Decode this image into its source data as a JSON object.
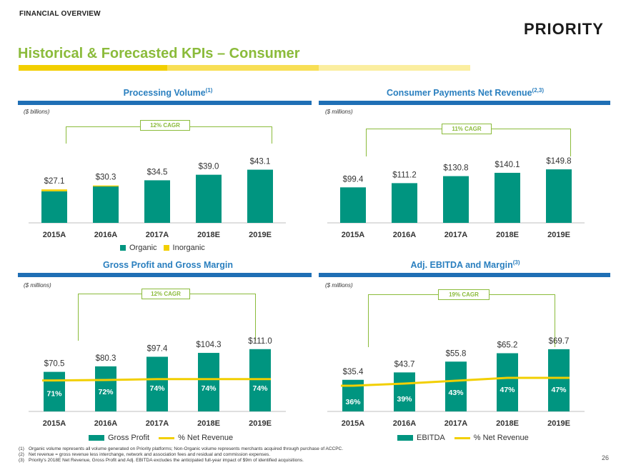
{
  "header": {
    "section_label": "FINANCIAL OVERVIEW",
    "logo_text": "PRIORITY",
    "page_title": "Historical & Forecasted KPIs – Consumer",
    "page_number": "26"
  },
  "colors": {
    "teal": "#009580",
    "yellow": "#f2cf00",
    "green": "#8bbb3b",
    "blue": "#1f6fb5",
    "title_blue": "#2a7fbf"
  },
  "chart_data": [
    {
      "id": "processing_volume",
      "type": "bar",
      "title": "Processing Volume",
      "title_sup": "(1)",
      "unit_label": "($ billions)",
      "cagr_label": "12% CAGR",
      "categories": [
        "2015A",
        "2016A",
        "2017A",
        "2018E",
        "2019E"
      ],
      "series": [
        {
          "name": "Organic",
          "values": [
            25.6,
            29.5,
            34.5,
            39.0,
            43.1
          ]
        },
        {
          "name": "Inorganic",
          "values": [
            1.5,
            0.8,
            0,
            0,
            0
          ]
        }
      ],
      "total_labels": [
        "$27.1",
        "$30.3",
        "$34.5",
        "$39.0",
        "$43.1"
      ],
      "ylim": [
        0,
        55
      ],
      "legend": [
        "Organic",
        "Inorganic"
      ]
    },
    {
      "id": "net_revenue",
      "type": "bar",
      "title": "Consumer Payments Net Revenue",
      "title_sup": "(2,3)",
      "unit_label": "($ millions)",
      "cagr_label": "11% CAGR",
      "categories": [
        "2015A",
        "2016A",
        "2017A",
        "2018E",
        "2019E"
      ],
      "series": [
        {
          "name": "Net Revenue",
          "values": [
            99.4,
            111.2,
            130.8,
            140.1,
            149.8
          ]
        }
      ],
      "total_labels": [
        "$99.4",
        "$111.2",
        "$130.8",
        "$140.1",
        "$149.8"
      ],
      "ylim": [
        0,
        190
      ]
    },
    {
      "id": "gross_profit",
      "type": "bar",
      "title": "Gross Profit and Gross Margin",
      "title_sup": "",
      "unit_label": "($ millions)",
      "cagr_label": "12% CAGR",
      "categories": [
        "2015A",
        "2016A",
        "2017A",
        "2018E",
        "2019E"
      ],
      "series": [
        {
          "name": "Gross Profit",
          "values": [
            70.5,
            80.3,
            97.4,
            104.3,
            111.0
          ]
        },
        {
          "name": "% Net Revenue",
          "values": [
            71,
            72,
            74,
            74,
            74
          ]
        }
      ],
      "total_labels": [
        "$70.5",
        "$80.3",
        "$97.4",
        "$104.3",
        "$111.0"
      ],
      "pct_labels": [
        "71%",
        "72%",
        "74%",
        "74%",
        "74%"
      ],
      "ylim": [
        0,
        140
      ],
      "pct_ylim": [
        0,
        180
      ],
      "legend": [
        "Gross Profit",
        "% Net Revenue"
      ]
    },
    {
      "id": "adj_ebitda",
      "type": "bar",
      "title": "Adj. EBITDA and Margin",
      "title_sup": "(3)",
      "unit_label": "($ millions)",
      "cagr_label": "19% CAGR",
      "categories": [
        "2015A",
        "2016A",
        "2017A",
        "2018E",
        "2019E"
      ],
      "series": [
        {
          "name": "EBITDA",
          "values": [
            35.4,
            43.7,
            55.8,
            65.2,
            69.7
          ]
        },
        {
          "name": "% Net Revenue",
          "values": [
            36,
            39,
            43,
            47,
            47
          ]
        }
      ],
      "total_labels": [
        "$35.4",
        "$43.7",
        "$55.8",
        "$65.2",
        "$69.7"
      ],
      "pct_labels": [
        "36%",
        "39%",
        "43%",
        "47%",
        "47%"
      ],
      "ylim": [
        0,
        88
      ],
      "pct_ylim": [
        0,
        110
      ],
      "legend": [
        "EBITDA",
        "% Net Revenue"
      ]
    }
  ],
  "footnotes": [
    {
      "num": "(1)",
      "text": "Organic volume represents all volume generated on Priority platforms; Non-Organic volume represents merchants acquired through purchase of ACCPC."
    },
    {
      "num": "(2)",
      "text": "Net revenue = gross revenue less interchange, network and association fees and residual and commission expenses."
    },
    {
      "num": "(3)",
      "text": "Priority's 2018E Net Revenue, Gross Profit and Adj. EBITDA excludes the anticipated full-year impact of $9m of identified acquisitions."
    }
  ]
}
